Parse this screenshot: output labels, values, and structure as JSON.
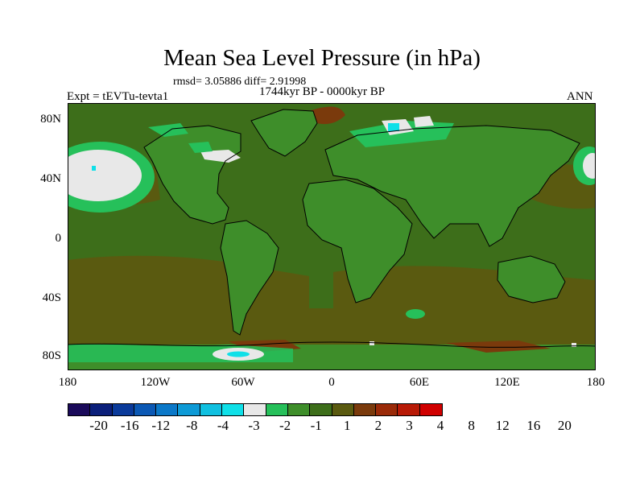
{
  "figure": {
    "title": "Mean Sea Level Pressure (in hPa)",
    "stats": "rmsd= 3.05886 diff= 2.91998",
    "period": "1744kyr BP - 0000kyr BP",
    "experiment": "Expt = tEVTu-tevta1",
    "season": "ANN"
  },
  "axes": {
    "lat_ticks": [
      "80N",
      "40N",
      "0",
      "40S",
      "80S"
    ],
    "lon_ticks": [
      "180",
      "120W",
      "60W",
      "0",
      "60E",
      "120E",
      "180"
    ]
  },
  "colorbar": {
    "labels": [
      "-20",
      "-16",
      "-12",
      "-8",
      "-4",
      "-3",
      "-2",
      "-1",
      "1",
      "2",
      "3",
      "4",
      "8",
      "12",
      "16",
      "20"
    ],
    "colors": [
      "#1a0a5a",
      "#0b1f7a",
      "#0a3a9a",
      "#0b58b4",
      "#0b78c8",
      "#0d9ad6",
      "#10c0e0",
      "#0fe0e8",
      "#e8e8e8",
      "#26c05a",
      "#3e8e2a",
      "#3d6e1a",
      "#5a5a10",
      "#7a3a0c",
      "#9a2a08",
      "#b81a06",
      "#d00000"
    ]
  },
  "colors": {
    "ocean_base": "#3d6e1a",
    "land_base": "#3e8e2a",
    "brown": "#5a5a10",
    "rust": "#7a3a0c",
    "bright_green": "#26c05a",
    "white": "#e8e8e8",
    "cyan": "#0fe0e8"
  }
}
